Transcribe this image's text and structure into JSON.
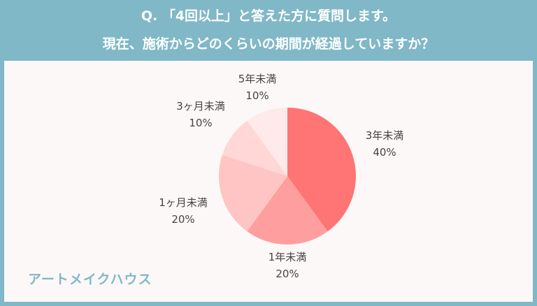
{
  "header": {
    "line1": "Q. 「4回以上」と答えた方に質問します。",
    "line2": "現在、施術からどのくらいの期間が経過していますか？"
  },
  "chart_data": {
    "type": "pie",
    "categories": [
      "3年未満",
      "1年未満",
      "1ヶ月未満",
      "3ヶ月未満",
      "5年未満"
    ],
    "values": [
      40,
      20,
      20,
      10,
      10
    ],
    "labels": [
      "40%",
      "20%",
      "20%",
      "10%",
      "10%"
    ],
    "colors": [
      "#ff7474",
      "#ff9e9e",
      "#ffc4c4",
      "#ffd7d7",
      "#ffeaea"
    ],
    "start": "12 o'clock, clockwise"
  },
  "brand": "アートメイクハウス"
}
